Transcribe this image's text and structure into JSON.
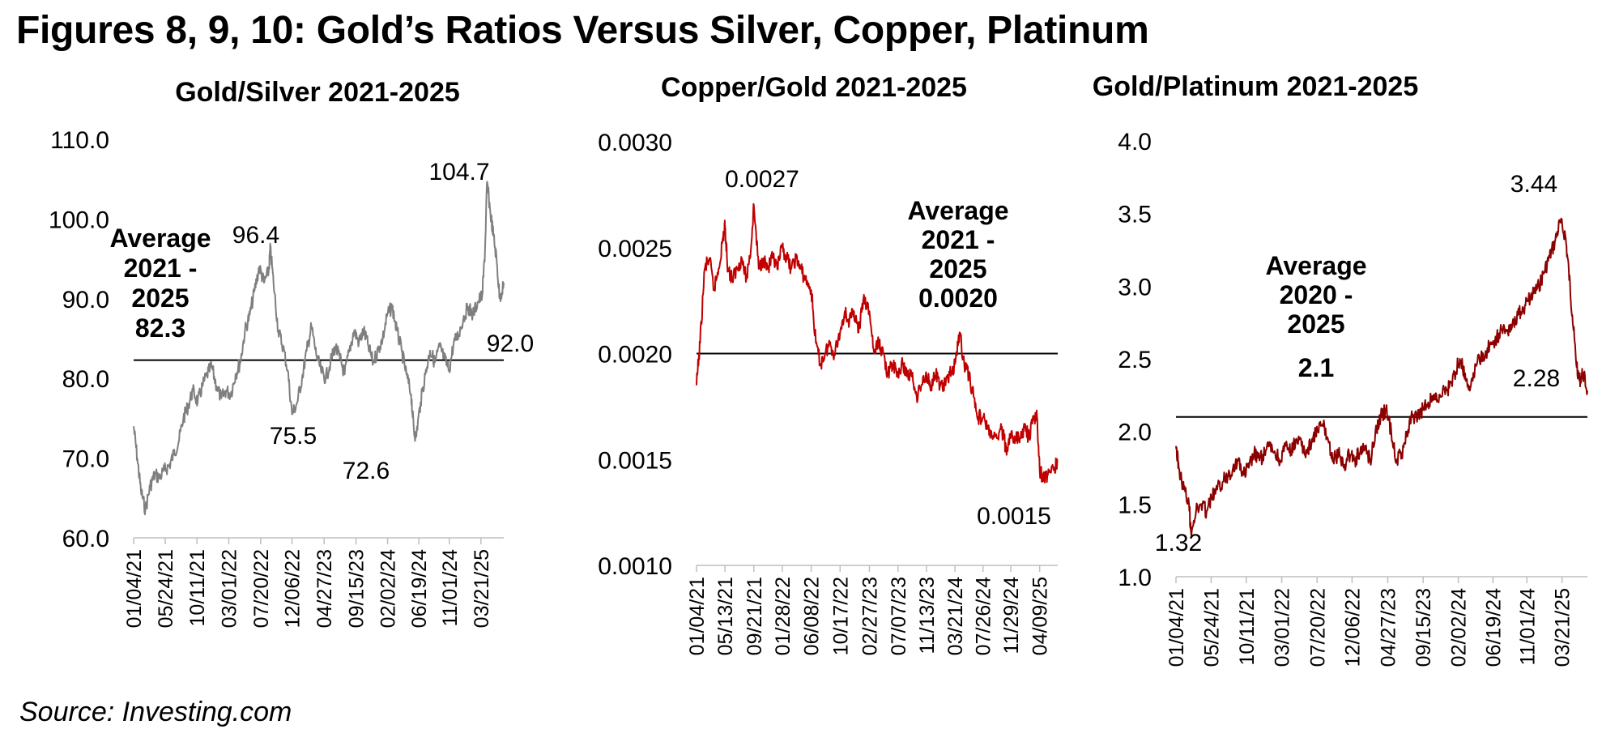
{
  "figure_title": "Figures 8, 9, 10: Gold’s Ratios Versus Silver, Copper, Platinum",
  "source": "Source: Investing.com",
  "chart_data": [
    {
      "type": "line",
      "title": "Gold/Silver 2021-2025",
      "color": "#7f7f7f",
      "ylim": [
        60,
        110
      ],
      "yticks": [
        "60.0",
        "70.0",
        "80.0",
        "90.0",
        "100.0",
        "110.0"
      ],
      "xlim": [
        "01/04/21",
        "06/30/25"
      ],
      "xticks": [
        "01/04/21",
        "05/24/21",
        "10/11/21",
        "03/01/22",
        "07/20/22",
        "12/06/22",
        "04/27/23",
        "09/15/23",
        "02/02/24",
        "06/19/24",
        "11/01/24",
        "03/21/25"
      ],
      "average": 82.3,
      "average_label": [
        "Average",
        "2021 -",
        "2025",
        "82.3"
      ],
      "series": [
        {
          "x": [
            "01/04/21",
            "01/20/21",
            "02/05/21",
            "02/25/21",
            "03/18/21",
            "04/08/21",
            "04/28/21",
            "05/20/21",
            "06/10/21",
            "06/30/21",
            "07/22/21",
            "08/12/21",
            "09/02/21",
            "09/23/21",
            "10/14/21",
            "11/04/21",
            "11/25/21",
            "12/15/21",
            "01/06/22",
            "01/27/22",
            "02/17/22",
            "03/10/22",
            "03/31/22",
            "04/21/22",
            "05/12/22",
            "06/02/22",
            "06/23/22",
            "07/14/22",
            "08/04/22",
            "08/25/22",
            "09/01/22",
            "09/15/22",
            "10/06/22",
            "10/27/22",
            "11/17/22",
            "12/06/22",
            "12/29/22",
            "01/19/23",
            "02/09/23",
            "03/02/23",
            "03/23/23",
            "04/13/23",
            "05/04/23",
            "05/25/23",
            "06/15/23",
            "07/06/23",
            "07/27/23",
            "08/17/23",
            "09/07/23",
            "09/28/23",
            "10/19/23",
            "11/09/23",
            "11/30/23",
            "12/21/23",
            "01/11/24",
            "02/01/24",
            "02/22/24",
            "03/14/24",
            "04/04/24",
            "04/25/24",
            "05/16/24",
            "05/28/24",
            "06/06/24",
            "06/27/24",
            "07/18/24",
            "08/08/24",
            "08/29/24",
            "09/19/24",
            "10/10/24",
            "10/31/24",
            "11/21/24",
            "12/12/24",
            "01/02/25",
            "01/23/25",
            "02/13/25",
            "03/06/25",
            "03/27/25",
            "04/08/25",
            "04/17/25",
            "05/01/25",
            "05/15/25",
            "05/29/25",
            "06/12/25",
            "06/30/25"
          ],
          "values": [
            74.0,
            70.0,
            66.0,
            63.5,
            66.5,
            68.0,
            67.5,
            68.5,
            69.0,
            70.5,
            72.0,
            75.0,
            76.5,
            78.5,
            77.0,
            79.0,
            80.5,
            81.5,
            79.0,
            77.5,
            78.5,
            78.0,
            80.5,
            82.0,
            86.0,
            88.0,
            91.0,
            94.0,
            92.0,
            93.5,
            96.4,
            92.0,
            86.0,
            84.0,
            81.0,
            75.5,
            77.0,
            80.0,
            83.5,
            86.5,
            83.0,
            81.0,
            80.0,
            82.0,
            84.0,
            82.5,
            80.5,
            83.5,
            86.0,
            84.5,
            86.0,
            84.0,
            82.0,
            83.5,
            85.0,
            88.0,
            89.0,
            86.0,
            83.5,
            80.5,
            78.0,
            73.5,
            72.6,
            77.0,
            80.5,
            83.5,
            82.0,
            84.0,
            82.5,
            81.0,
            84.5,
            85.5,
            87.5,
            89.0,
            88.0,
            89.5,
            90.5,
            96.0,
            104.7,
            101.0,
            98.0,
            95.0,
            90.0,
            92.0
          ]
        }
      ],
      "annotations": [
        {
          "text": "104.7",
          "x": "04/17/25",
          "y": 104.7
        },
        {
          "text": "96.4",
          "x": "09/01/22",
          "y": 96.4
        },
        {
          "text": "75.5",
          "x": "12/06/22",
          "y": 75.5
        },
        {
          "text": "72.6",
          "x": "06/06/24",
          "y": 72.6
        },
        {
          "text": "92.0",
          "x": "06/30/25",
          "y": 92.0
        }
      ]
    },
    {
      "type": "line",
      "title": "Copper/Gold 2021-2025",
      "color": "#c00000",
      "ylim": [
        0.001,
        0.003
      ],
      "yticks": [
        "0.0010",
        "0.0015",
        "0.0020",
        "0.0025",
        "0.0030"
      ],
      "xlim": [
        "01/04/21",
        "06/30/25"
      ],
      "xticks": [
        "01/04/21",
        "05/13/21",
        "09/21/21",
        "01/28/22",
        "06/08/22",
        "10/17/22",
        "02/27/23",
        "07/07/23",
        "11/13/23",
        "03/21/24",
        "07/26/24",
        "11/29/24",
        "04/09/25"
      ],
      "average": 0.002,
      "average_label": [
        "Average",
        "2021 -",
        "2025",
        "0.0020"
      ],
      "series": [
        {
          "x": [
            "01/04/21",
            "01/20/21",
            "02/10/21",
            "03/03/21",
            "03/24/21",
            "04/14/21",
            "05/05/21",
            "05/13/21",
            "05/26/21",
            "06/16/21",
            "07/07/21",
            "07/28/21",
            "08/18/21",
            "09/08/21",
            "09/21/21",
            "10/13/21",
            "11/03/21",
            "11/24/21",
            "12/15/21",
            "01/05/22",
            "01/28/22",
            "02/17/22",
            "03/10/22",
            "03/31/22",
            "04/21/22",
            "05/12/22",
            "06/08/22",
            "06/29/22",
            "07/20/22",
            "08/10/22",
            "08/31/22",
            "09/21/22",
            "10/17/22",
            "11/07/22",
            "11/28/22",
            "12/19/22",
            "01/09/23",
            "01/30/23",
            "02/27/23",
            "03/20/23",
            "04/10/23",
            "05/01/23",
            "05/22/23",
            "06/12/23",
            "07/07/23",
            "07/28/23",
            "08/18/23",
            "09/08/23",
            "09/29/23",
            "10/20/23",
            "11/13/23",
            "12/04/23",
            "12/25/23",
            "01/15/24",
            "02/05/24",
            "02/26/24",
            "03/21/24",
            "04/11/24",
            "05/02/24",
            "05/23/24",
            "06/13/24",
            "07/04/24",
            "07/26/24",
            "08/16/24",
            "09/06/24",
            "09/27/24",
            "10/18/24",
            "11/08/24",
            "11/29/24",
            "12/20/24",
            "01/10/25",
            "01/31/25",
            "02/21/25",
            "03/14/25",
            "03/28/25",
            "04/09/25",
            "04/30/25",
            "05/21/25",
            "06/11/25",
            "06/30/25"
          ],
          "values": [
            0.00185,
            0.00205,
            0.0024,
            0.00245,
            0.0023,
            0.0024,
            0.00255,
            0.0026,
            0.0024,
            0.00235,
            0.0024,
            0.00245,
            0.00235,
            0.0025,
            0.0027,
            0.0024,
            0.00245,
            0.0024,
            0.00245,
            0.0024,
            0.0025,
            0.00245,
            0.0024,
            0.00245,
            0.0024,
            0.00235,
            0.0023,
            0.00205,
            0.00195,
            0.002,
            0.00205,
            0.002,
            0.0021,
            0.0022,
            0.00215,
            0.0022,
            0.0021,
            0.00225,
            0.0022,
            0.002,
            0.00205,
            0.002,
            0.0019,
            0.00195,
            0.0019,
            0.00195,
            0.0019,
            0.0019,
            0.0018,
            0.00185,
            0.0019,
            0.00185,
            0.0019,
            0.00185,
            0.00185,
            0.0019,
            0.00195,
            0.0021,
            0.00195,
            0.0019,
            0.0018,
            0.0017,
            0.0017,
            0.00165,
            0.0016,
            0.0016,
            0.00165,
            0.00155,
            0.0016,
            0.0016,
            0.0016,
            0.00165,
            0.0016,
            0.0017,
            0.0017,
            0.00145,
            0.0014,
            0.00145,
            0.00145,
            0.0015
          ]
        }
      ],
      "annotations": [
        {
          "text": "0.0027",
          "x": "09/21/21",
          "y": 0.0027
        },
        {
          "text": "0.0015",
          "x": "06/30/25",
          "y": 0.0015
        }
      ]
    },
    {
      "type": "line",
      "title": "Gold/Platinum 2021-2025",
      "color": "#8b0000",
      "ylim": [
        1.0,
        4.0
      ],
      "yticks": [
        "1.0",
        "1.5",
        "2.0",
        "2.5",
        "3.0",
        "3.5",
        "4.0"
      ],
      "xlim": [
        "01/04/21",
        "06/30/25"
      ],
      "xticks": [
        "01/04/21",
        "05/24/21",
        "10/11/21",
        "03/01/22",
        "07/20/22",
        "12/06/22",
        "04/27/23",
        "09/15/23",
        "02/02/24",
        "06/19/24",
        "11/01/24",
        "03/21/25"
      ],
      "average": 2.1,
      "average_label": [
        "Average",
        "2020 -",
        "2025",
        "2.1"
      ],
      "series": [
        {
          "x": [
            "01/04/21",
            "01/15/21",
            "02/05/21",
            "02/25/21",
            "03/04/21",
            "03/25/21",
            "04/15/21",
            "05/06/21",
            "05/27/21",
            "06/17/21",
            "07/08/21",
            "07/29/21",
            "08/19/21",
            "09/09/21",
            "09/30/21",
            "10/21/21",
            "11/11/21",
            "12/02/21",
            "12/23/21",
            "01/13/22",
            "02/03/22",
            "02/24/22",
            "03/17/22",
            "04/07/22",
            "04/28/22",
            "05/19/22",
            "06/09/22",
            "06/30/22",
            "07/21/22",
            "08/11/22",
            "09/01/22",
            "09/22/22",
            "10/13/22",
            "11/03/22",
            "11/24/22",
            "12/15/22",
            "01/05/23",
            "01/26/23",
            "02/16/23",
            "03/09/23",
            "03/30/23",
            "04/20/23",
            "05/11/23",
            "06/01/23",
            "06/22/23",
            "07/13/23",
            "08/03/23",
            "08/24/23",
            "09/14/23",
            "10/05/23",
            "10/26/23",
            "11/16/23",
            "12/07/23",
            "12/28/23",
            "01/18/24",
            "02/08/24",
            "02/29/24",
            "03/21/24",
            "04/11/24",
            "05/02/24",
            "05/23/24",
            "06/13/24",
            "07/04/24",
            "07/25/24",
            "08/15/24",
            "09/05/24",
            "09/26/24",
            "10/17/24",
            "11/07/24",
            "11/28/24",
            "12/19/24",
            "01/09/25",
            "01/30/25",
            "02/20/25",
            "03/13/25",
            "04/03/25",
            "04/17/25",
            "05/01/25",
            "05/15/25",
            "05/29/25",
            "06/12/25",
            "06/30/25"
          ],
          "values": [
            1.9,
            1.75,
            1.6,
            1.5,
            1.32,
            1.45,
            1.5,
            1.45,
            1.55,
            1.6,
            1.65,
            1.7,
            1.75,
            1.8,
            1.7,
            1.75,
            1.85,
            1.8,
            1.85,
            1.9,
            1.85,
            1.8,
            1.9,
            1.85,
            1.95,
            1.9,
            1.85,
            1.95,
            2.0,
            2.05,
            1.95,
            1.8,
            1.85,
            1.75,
            1.85,
            1.8,
            1.85,
            1.9,
            1.8,
            2.0,
            2.1,
            2.15,
            2.0,
            1.8,
            1.85,
            2.0,
            2.1,
            2.1,
            2.15,
            2.2,
            2.25,
            2.2,
            2.3,
            2.3,
            2.4,
            2.5,
            2.4,
            2.3,
            2.45,
            2.5,
            2.55,
            2.6,
            2.65,
            2.7,
            2.7,
            2.75,
            2.8,
            2.85,
            2.9,
            2.95,
            3.0,
            3.1,
            3.2,
            3.3,
            3.44,
            3.35,
            3.1,
            2.8,
            2.5,
            2.35,
            2.4,
            2.28
          ]
        }
      ],
      "annotations": [
        {
          "text": "3.44",
          "x": "03/13/25",
          "y": 3.44
        },
        {
          "text": "1.32",
          "x": "03/04/21",
          "y": 1.32
        },
        {
          "text": "2.28",
          "x": "06/30/25",
          "y": 2.28
        }
      ]
    }
  ]
}
